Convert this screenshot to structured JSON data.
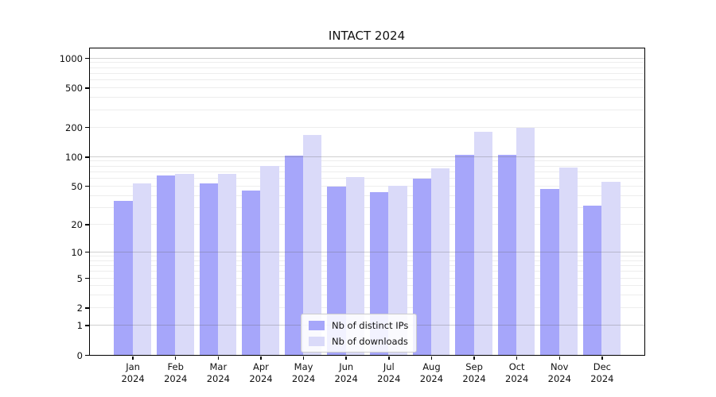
{
  "figure_title": "INTACT 2024",
  "chart_data": {
    "type": "bar",
    "title": "INTACT 2024",
    "categories": [
      "Jan",
      "Feb",
      "Mar",
      "Apr",
      "May",
      "Jun",
      "Jul",
      "Aug",
      "Sep",
      "Oct",
      "Nov",
      "Dec"
    ],
    "category_year": "2024",
    "series": [
      {
        "name": "Nb of distinct IPs",
        "color": "#a6a6fa",
        "values": [
          35,
          64,
          53,
          45,
          103,
          49,
          43,
          60,
          105,
          105,
          47,
          31
        ]
      },
      {
        "name": "Nb of downloads",
        "color": "#dadaf9",
        "values": [
          53,
          66,
          67,
          80,
          165,
          62,
          50,
          76,
          178,
          195,
          78,
          55
        ]
      }
    ],
    "xlabel": "",
    "ylabel": "",
    "yscale": "log1p",
    "ylim": [
      0,
      1250
    ],
    "ytick_values": [
      0,
      1,
      2,
      5,
      10,
      20,
      50,
      100,
      200,
      500,
      1000
    ],
    "ytick_labels": [
      "0",
      "1",
      "2",
      "5",
      "10",
      "20",
      "50",
      "100",
      "200",
      "500",
      "1000"
    ],
    "major_grid_values": [
      1,
      10,
      100,
      1000
    ],
    "minor_grid_values": [
      2,
      3,
      4,
      5,
      6,
      7,
      8,
      9,
      20,
      30,
      40,
      50,
      60,
      70,
      80,
      90,
      200,
      300,
      400,
      500,
      600,
      700,
      800,
      900
    ],
    "grid": true,
    "legend_position": "lower center",
    "legend_entries": [
      "Nb of distinct IPs",
      "Nb of downloads"
    ]
  }
}
